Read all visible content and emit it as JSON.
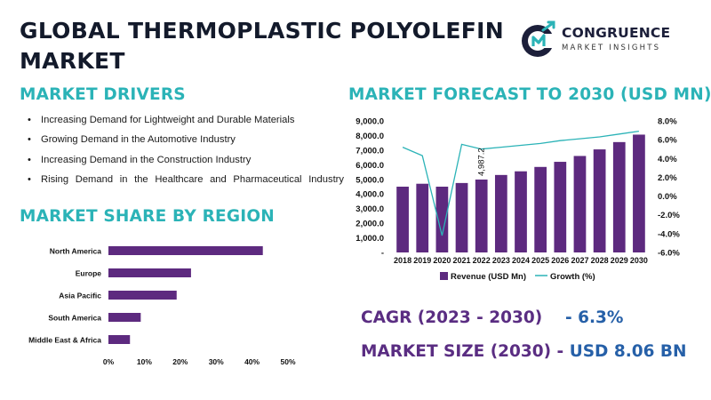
{
  "title": "GLOBAL THERMOPLASTIC POLYOLEFIN MARKET",
  "brand": {
    "name": "CONGRUENCE",
    "tagline": "MARKET INSIGHTS",
    "mark": "CM"
  },
  "colors": {
    "teal": "#2bb3b7",
    "purple": "#5d2a7f",
    "blue": "#2660a8",
    "navy": "#131a2b"
  },
  "drivers": {
    "heading": "MARKET DRIVERS",
    "items": [
      "Increasing Demand for Lightweight and Durable Materials",
      "Growing Demand in the Automotive Industry",
      "Increasing Demand in the Construction Industry",
      "Rising Demand in the Healthcare and Pharmaceutical Industry"
    ]
  },
  "forecast": {
    "heading": "MARKET FORECAST TO 2030 (USD MN)"
  },
  "share": {
    "heading": "MARKET SHARE BY REGION"
  },
  "kpis": {
    "cagr_label": "CAGR (2023 - 2030)",
    "cagr_value": "- 6.3%",
    "size_label": "MARKET SIZE (2030) -",
    "size_value": "USD 8.06 BN"
  },
  "chart_data": [
    {
      "type": "bar",
      "orientation": "vertical",
      "categories": [
        "2018",
        "2019",
        "2020",
        "2021",
        "2022",
        "2023",
        "2024",
        "2025",
        "2026",
        "2027",
        "2028",
        "2029",
        "2030"
      ],
      "series": [
        {
          "name": "Revenue (USD Mn)",
          "type": "bar",
          "axis": "left",
          "color": "#5d2a7f",
          "values": [
            4500,
            4700,
            4500,
            4750,
            4987.2,
            5300,
            5550,
            5850,
            6200,
            6600,
            7050,
            7550,
            8060
          ]
        },
        {
          "name": "Growth (%)",
          "type": "line",
          "axis": "right",
          "color": "#2bb3b7",
          "values": [
            5.2,
            4.3,
            -4.2,
            5.5,
            5.0,
            5.2,
            5.4,
            5.6,
            5.9,
            6.1,
            6.3,
            6.6,
            6.9
          ]
        }
      ],
      "data_labels": [
        {
          "category": "2022",
          "text": "4,987.2"
        }
      ],
      "y_left": {
        "min": 0,
        "max": 9000,
        "step": 1000,
        "ticks": [
          "-",
          "1,000.0",
          "2,000.0",
          "3,000.0",
          "4,000.0",
          "5,000.0",
          "6,000.0",
          "7,000.0",
          "8,000.0",
          "9,000.0"
        ]
      },
      "y_right": {
        "min": -6,
        "max": 8,
        "step": 2,
        "ticks": [
          "-6.0%",
          "-4.0%",
          "-2.0%",
          "0.0%",
          "2.0%",
          "4.0%",
          "6.0%",
          "8.0%"
        ]
      },
      "legend": "bottom",
      "grid": false
    },
    {
      "type": "bar",
      "orientation": "horizontal",
      "categories": [
        "North America",
        "Europe",
        "Asia Pacific",
        "South America",
        "Middle East & Africa"
      ],
      "values": [
        43,
        23,
        19,
        9,
        6
      ],
      "color": "#5d2a7f",
      "x_ticks": [
        "0%",
        "10%",
        "20%",
        "30%",
        "40%",
        "50%"
      ],
      "xlim": [
        0,
        50
      ],
      "grid": false
    }
  ]
}
